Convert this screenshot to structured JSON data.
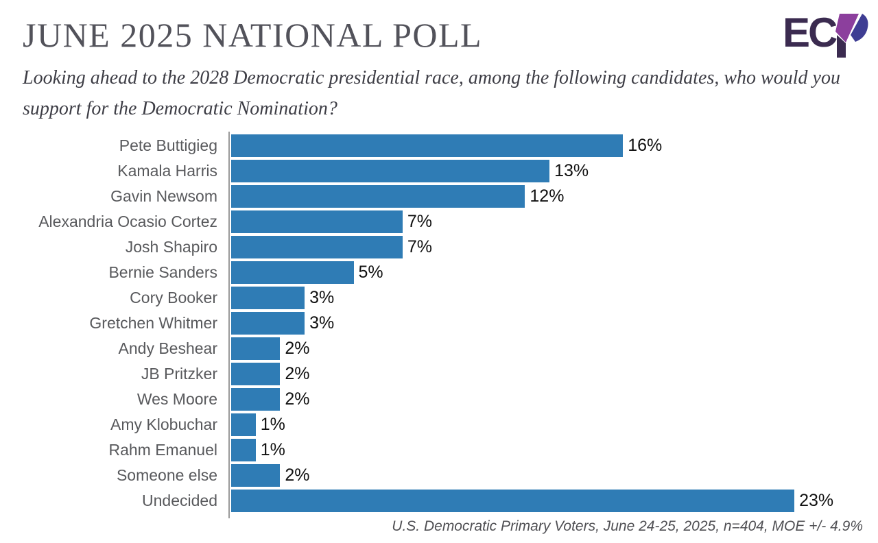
{
  "header": {
    "title": "JUNE 2025 NATIONAL POLL",
    "subtitle": "Looking ahead to the 2028 Democratic presidential race, among the following candidates, who would you support for the Democratic Nomination?",
    "logo": {
      "text": "EC",
      "name": "ECP logo"
    }
  },
  "colors": {
    "bar": "#2f7cb5",
    "title": "#52525a",
    "subtitle": "#3d3d45",
    "logo_dark": "#3b2b50",
    "logo_purple": "#8c3f9d",
    "logo_indigo": "#3e3d93",
    "axis": "#9a9a9a"
  },
  "chart_data": {
    "type": "bar",
    "orientation": "horizontal",
    "title": "",
    "xlabel": "",
    "ylabel": "",
    "categories": [
      "Pete Buttigieg",
      "Kamala Harris",
      "Gavin Newsom",
      "Alexandria Ocasio Cortez",
      "Josh Shapiro",
      "Bernie Sanders",
      "Cory Booker",
      "Gretchen Whitmer",
      "Andy Beshear",
      "JB Pritzker",
      "Wes Moore",
      "Amy Klobuchar",
      "Rahm Emanuel",
      "Someone else",
      "Undecided"
    ],
    "values": [
      16,
      13,
      12,
      7,
      7,
      5,
      3,
      3,
      2,
      2,
      2,
      1,
      1,
      2,
      23
    ],
    "value_labels": [
      "16%",
      "13%",
      "12%",
      "7%",
      "7%",
      "5%",
      "3%",
      "3%",
      "2%",
      "2%",
      "2%",
      "1%",
      "1%",
      "2%",
      "23%"
    ],
    "xlim": [
      0,
      23
    ],
    "grid": false,
    "legend": false
  },
  "footer": {
    "source": "U.S. Democratic Primary Voters, June 24-25, 2025, n=404, MOE +/- 4.9%"
  }
}
